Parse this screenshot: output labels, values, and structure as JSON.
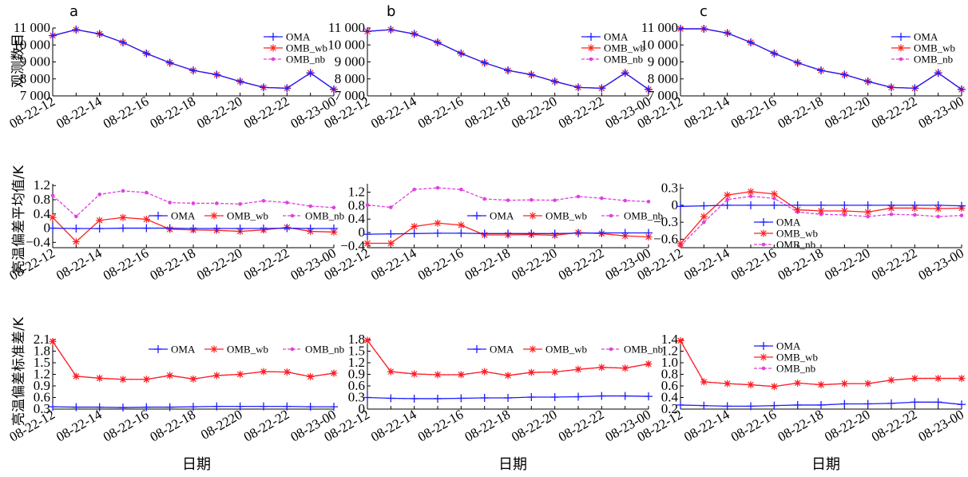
{
  "figure": {
    "ylabels": [
      "观测数目",
      "亮温偏差平均值/K",
      "亮温偏差标准差/K"
    ],
    "xlabel": "日期",
    "panel_letters": [
      "a",
      "b",
      "c"
    ],
    "colors": {
      "OMA": "#1f1fff",
      "OMB_wb": "#ff2020",
      "OMB_nb": "#e040e0",
      "axis": "#000000"
    }
  },
  "chart_data": [
    {
      "id": "a-count",
      "type": "line",
      "panel": "a",
      "row": 0,
      "categories": [
        "08-22-12",
        "08-22-13",
        "08-22-14",
        "08-22-15",
        "08-22-16",
        "08-22-17",
        "08-22-18",
        "08-22-19",
        "08-22-20",
        "08-22-21",
        "08-22-22",
        "08-22-23",
        "08-23-00"
      ],
      "xtick_labels": [
        "08-22-12",
        "08-22-14",
        "08-22-16",
        "08-22-18",
        "08-22-20",
        "08-22-22",
        "08-23-00"
      ],
      "ylim": [
        7000,
        11000
      ],
      "yticks": [
        7000,
        8000,
        9000,
        10000,
        11000
      ],
      "ytick_labels": [
        "7 000",
        "8 000",
        "9 000",
        "10 000",
        "11 000"
      ],
      "legend": {
        "placement": "top-right",
        "layout": "vertical"
      },
      "series": [
        {
          "name": "OMA",
          "values": [
            10550,
            10900,
            10650,
            10150,
            9500,
            8950,
            8500,
            8250,
            7850,
            7500,
            7450,
            8350,
            7380
          ]
        },
        {
          "name": "OMB_wb",
          "values": [
            10550,
            10900,
            10650,
            10150,
            9500,
            8950,
            8500,
            8250,
            7850,
            7500,
            7450,
            8350,
            7380
          ]
        },
        {
          "name": "OMB_nb",
          "values": [
            10550,
            10900,
            10650,
            10150,
            9500,
            8950,
            8500,
            8250,
            7850,
            7500,
            7450,
            8350,
            7380
          ]
        }
      ]
    },
    {
      "id": "b-count",
      "type": "line",
      "panel": "b",
      "row": 0,
      "categories": [
        "08-22-12",
        "08-22-13",
        "08-22-14",
        "08-22-15",
        "08-22-16",
        "08-22-17",
        "08-22-18",
        "08-22-19",
        "08-22-20",
        "08-22-21",
        "08-22-22",
        "08-22-23",
        "08-23-00"
      ],
      "xtick_labels": [
        "08-22-12",
        "08-22-14",
        "08-22-16",
        "08-22-18",
        "08-22-20",
        "08-22-22",
        "08-23-00"
      ],
      "ylim": [
        7000,
        11000
      ],
      "yticks": [
        7000,
        8000,
        9000,
        10000,
        11000
      ],
      "ytick_labels": [
        "7 000",
        "8 000",
        "9 000",
        "10 000",
        "11 000"
      ],
      "legend": {
        "placement": "top-right",
        "layout": "vertical"
      },
      "series": [
        {
          "name": "OMA",
          "values": [
            10800,
            10900,
            10650,
            10150,
            9500,
            8950,
            8500,
            8250,
            7850,
            7500,
            7450,
            8350,
            7380
          ]
        },
        {
          "name": "OMB_wb",
          "values": [
            10800,
            10900,
            10650,
            10150,
            9500,
            8950,
            8500,
            8250,
            7850,
            7500,
            7450,
            8350,
            7380
          ]
        },
        {
          "name": "OMB_nb",
          "values": [
            10800,
            10900,
            10650,
            10150,
            9500,
            8950,
            8500,
            8250,
            7850,
            7500,
            7450,
            8350,
            7380
          ]
        }
      ]
    },
    {
      "id": "c-count",
      "type": "line",
      "panel": "c",
      "row": 0,
      "categories": [
        "08-22-12",
        "08-22-13",
        "08-22-14",
        "08-22-15",
        "08-22-16",
        "08-22-17",
        "08-22-18",
        "08-22-19",
        "08-22-20",
        "08-22-21",
        "08-22-22",
        "08-22-23",
        "08-23-00"
      ],
      "xtick_labels": [
        "08-22-12",
        "08-22-14",
        "08-22-16",
        "08-22-18",
        "08-22-20",
        "08-22-22",
        "08-23-00"
      ],
      "ylim": [
        7000,
        11000
      ],
      "yticks": [
        7000,
        8000,
        9000,
        10000,
        11000
      ],
      "ytick_labels": [
        "7 000",
        "8 000",
        "9 000",
        "10 000",
        "11 000"
      ],
      "legend": {
        "placement": "top-right",
        "layout": "vertical"
      },
      "series": [
        {
          "name": "OMA",
          "values": [
            10950,
            10950,
            10700,
            10150,
            9500,
            8950,
            8500,
            8250,
            7850,
            7500,
            7450,
            8350,
            7380
          ]
        },
        {
          "name": "OMB_wb",
          "values": [
            10950,
            10950,
            10700,
            10150,
            9500,
            8950,
            8500,
            8250,
            7850,
            7500,
            7450,
            8350,
            7380
          ]
        },
        {
          "name": "OMB_nb",
          "values": [
            10950,
            10950,
            10700,
            10150,
            9500,
            8950,
            8500,
            8250,
            7850,
            7500,
            7450,
            8350,
            7380
          ]
        }
      ]
    },
    {
      "id": "a-mean",
      "type": "line",
      "panel": "a",
      "row": 1,
      "categories": [
        "08-22-12",
        "08-22-13",
        "08-22-14",
        "08-22-15",
        "08-22-16",
        "08-22-17",
        "08-22-18",
        "08-22-19",
        "08-22-20",
        "08-22-21",
        "08-22-22",
        "08-22-23",
        "08-23-00"
      ],
      "xtick_labels": [
        "08-22-12",
        "08-22-14",
        "08-22-16",
        "08-22-18",
        "08-22-20",
        "08-22-22",
        "08-23-00"
      ],
      "ylim": [
        -0.55,
        1.25
      ],
      "yticks": [
        -0.4,
        0,
        0.4,
        0.8,
        1.2
      ],
      "ytick_labels": [
        "−0.4",
        "0",
        "0.4",
        "0.8",
        "1.2"
      ],
      "legend": {
        "placement": "center-right",
        "layout": "horizontal"
      },
      "series": [
        {
          "name": "OMA",
          "values": [
            0,
            -0.01,
            -0.01,
            0,
            0,
            0,
            -0.01,
            -0.01,
            -0.01,
            -0.01,
            0,
            -0.01,
            -0.01
          ]
        },
        {
          "name": "OMB_wb",
          "values": [
            0.3,
            -0.38,
            0.22,
            0.3,
            0.25,
            -0.03,
            -0.05,
            -0.06,
            -0.09,
            -0.05,
            0.02,
            -0.09,
            -0.11
          ]
        },
        {
          "name": "OMB_nb",
          "values": [
            0.92,
            0.33,
            0.95,
            1.05,
            1.0,
            0.72,
            0.7,
            0.7,
            0.68,
            0.77,
            0.72,
            0.62,
            0.58
          ]
        }
      ]
    },
    {
      "id": "b-mean",
      "type": "line",
      "panel": "b",
      "row": 1,
      "categories": [
        "08-22-12",
        "08-22-13",
        "08-22-14",
        "08-22-15",
        "08-22-16",
        "08-22-17",
        "08-22-18",
        "08-22-19",
        "08-22-20",
        "08-22-21",
        "08-22-22",
        "08-22-23",
        "08-23-00"
      ],
      "xtick_labels": [
        "08-22-12",
        "08-22-14",
        "08-22-16",
        "08-22-18",
        "08-22-20",
        "08-22-22",
        "08-23-00"
      ],
      "ylim": [
        -0.45,
        1.45
      ],
      "yticks": [
        -0.4,
        0,
        0.4,
        0.8,
        1.2
      ],
      "ytick_labels": [
        "−0.4",
        "0",
        "0.4",
        "0.8",
        "1.2"
      ],
      "legend": {
        "placement": "center-right",
        "layout": "horizontal"
      },
      "series": [
        {
          "name": "OMA",
          "values": [
            -0.05,
            -0.04,
            -0.03,
            -0.02,
            -0.02,
            -0.03,
            -0.03,
            -0.03,
            -0.03,
            -0.02,
            -0.01,
            -0.01,
            -0.01
          ]
        },
        {
          "name": "OMB_wb",
          "values": [
            -0.32,
            -0.32,
            0.18,
            0.28,
            0.22,
            -0.07,
            -0.07,
            -0.06,
            -0.08,
            0.0,
            -0.03,
            -0.1,
            -0.13
          ]
        },
        {
          "name": "OMB_nb",
          "values": [
            0.82,
            0.75,
            1.28,
            1.33,
            1.28,
            1.0,
            0.96,
            0.97,
            0.96,
            1.07,
            1.02,
            0.95,
            0.92
          ]
        }
      ]
    },
    {
      "id": "c-mean",
      "type": "line",
      "panel": "c",
      "row": 1,
      "categories": [
        "08-22-12",
        "08-22-13",
        "08-22-14",
        "08-22-15",
        "08-22-16",
        "08-22-17",
        "08-22-18",
        "08-22-19",
        "08-22-20",
        "08-22-21",
        "08-22-22",
        "08-22-23",
        "08-23-00"
      ],
      "xtick_labels": [
        "08-22-12",
        "08-22-14",
        "08-22-16",
        "08-22-18",
        "08-22-20",
        "08-22-22",
        "08-23-00"
      ],
      "ylim": [
        -0.75,
        0.38
      ],
      "yticks": [
        -0.6,
        -0.3,
        0,
        0.3
      ],
      "ytick_labels": [
        "−0.6",
        "−0.3",
        "0",
        "0.3"
      ],
      "legend": {
        "placement": "center",
        "layout": "vertical"
      },
      "series": [
        {
          "name": "OMA",
          "values": [
            -0.02,
            -0.01,
            0,
            0,
            0,
            0,
            0,
            0,
            0,
            0,
            0,
            0,
            -0.01
          ]
        },
        {
          "name": "OMB_wb",
          "values": [
            -0.68,
            -0.2,
            0.18,
            0.24,
            0.2,
            -0.08,
            -0.1,
            -0.1,
            -0.12,
            -0.05,
            -0.05,
            -0.06,
            -0.05
          ]
        },
        {
          "name": "OMB_nb",
          "values": [
            -0.72,
            -0.3,
            0.1,
            0.16,
            0.12,
            -0.12,
            -0.16,
            -0.17,
            -0.2,
            -0.16,
            -0.17,
            -0.2,
            -0.18
          ]
        }
      ]
    },
    {
      "id": "a-std",
      "type": "line",
      "panel": "a",
      "row": 2,
      "categories": [
        "08-22-12",
        "08-22-13",
        "08-22-14",
        "08-22-15",
        "08-22-16",
        "08-22-17",
        "08-22-18",
        "08-22-19",
        "08-22-20",
        "08-22-21",
        "08-22-22",
        "08-22-23",
        "08-23-00"
      ],
      "xtick_labels": [
        "08-22-12",
        "08-22-14",
        "08-22-16",
        "08-22-18",
        "08-2220",
        "08-22-22",
        "08-23-00"
      ],
      "ylim": [
        0.3,
        2.1
      ],
      "yticks": [
        0.3,
        0.6,
        0.9,
        1.2,
        1.5,
        1.8,
        2.1
      ],
      "ytick_labels": [
        "0.3",
        "0.6",
        "0.9",
        "1.2",
        "1.5",
        "1.8",
        "2.1"
      ],
      "legend": {
        "placement": "top-right",
        "layout": "horizontal"
      },
      "series": [
        {
          "name": "OMA",
          "values": [
            0.36,
            0.35,
            0.35,
            0.34,
            0.35,
            0.35,
            0.36,
            0.37,
            0.37,
            0.37,
            0.37,
            0.36,
            0.36
          ]
        },
        {
          "name": "OMB_wb",
          "values": [
            2.05,
            1.15,
            1.1,
            1.07,
            1.07,
            1.17,
            1.08,
            1.17,
            1.2,
            1.27,
            1.26,
            1.14,
            1.23
          ]
        },
        {
          "name": "OMB_nb",
          "values": [
            2.05,
            1.15,
            1.1,
            1.07,
            1.07,
            1.17,
            1.08,
            1.17,
            1.2,
            1.27,
            1.26,
            1.14,
            1.23
          ]
        }
      ]
    },
    {
      "id": "b-std",
      "type": "line",
      "panel": "b",
      "row": 2,
      "categories": [
        "08-22-12",
        "08-22-13",
        "08-22-14",
        "08-22-15",
        "08-22-16",
        "08-22-17",
        "08-22-18",
        "08-22-19",
        "08-22-20",
        "08-22-21",
        "08-22-22",
        "08-22-23",
        "08-23-00"
      ],
      "xtick_labels": [
        "08-22-12",
        "08-22-14",
        "08-22-16",
        "08-22-18",
        "08-22-20",
        "08-22-22",
        "08-23-00"
      ],
      "ylim": [
        0,
        1.8
      ],
      "yticks": [
        0,
        0.3,
        0.6,
        0.9,
        1.2,
        1.5,
        1.8
      ],
      "ytick_labels": [
        "0",
        "0.3",
        "0.6",
        "0.9",
        "1.2",
        "1.5",
        "1.8"
      ],
      "legend": {
        "placement": "top-right",
        "layout": "horizontal"
      },
      "series": [
        {
          "name": "OMA",
          "values": [
            0.3,
            0.28,
            0.27,
            0.27,
            0.28,
            0.29,
            0.29,
            0.31,
            0.31,
            0.32,
            0.34,
            0.34,
            0.33
          ]
        },
        {
          "name": "OMB_wb",
          "values": [
            1.78,
            0.97,
            0.91,
            0.89,
            0.89,
            0.97,
            0.87,
            0.95,
            0.96,
            1.03,
            1.08,
            1.06,
            1.17
          ]
        },
        {
          "name": "OMB_nb",
          "values": [
            1.78,
            0.97,
            0.91,
            0.89,
            0.89,
            0.97,
            0.87,
            0.95,
            0.96,
            1.03,
            1.08,
            1.06,
            1.17
          ]
        }
      ]
    },
    {
      "id": "c-std",
      "type": "line",
      "panel": "c",
      "row": 2,
      "categories": [
        "08-22-12",
        "08-22-13",
        "08-22-14",
        "08-22-15",
        "08-22-16",
        "08-22-17",
        "08-22-18",
        "08-22-19",
        "08-22-20",
        "08-22-21",
        "08-22-22",
        "08-22-23",
        "08-23-00"
      ],
      "xtick_labels": [
        "08-22-12",
        "08-22-14",
        "08-22-16",
        "08-22-18",
        "08-22-20",
        "08-22-22",
        "08-23-00"
      ],
      "ylim": [
        0.2,
        1.4
      ],
      "yticks": [
        0.2,
        0.4,
        0.6,
        0.8,
        1.0,
        1.2,
        1.4
      ],
      "ytick_labels": [
        "0.2",
        "0.4",
        "0.6",
        "0.8",
        "1.0",
        "1.2",
        "1.4"
      ],
      "legend": {
        "placement": "top-center",
        "layout": "vertical"
      },
      "series": [
        {
          "name": "OMA",
          "values": [
            0.27,
            0.26,
            0.25,
            0.25,
            0.26,
            0.27,
            0.27,
            0.29,
            0.29,
            0.3,
            0.32,
            0.32,
            0.28
          ]
        },
        {
          "name": "OMB_wb",
          "values": [
            1.38,
            0.67,
            0.64,
            0.62,
            0.59,
            0.65,
            0.62,
            0.64,
            0.64,
            0.7,
            0.73,
            0.73,
            0.73
          ]
        },
        {
          "name": "OMB_nb",
          "values": [
            1.38,
            0.67,
            0.64,
            0.62,
            0.59,
            0.65,
            0.62,
            0.64,
            0.64,
            0.7,
            0.73,
            0.73,
            0.73
          ]
        }
      ]
    }
  ]
}
